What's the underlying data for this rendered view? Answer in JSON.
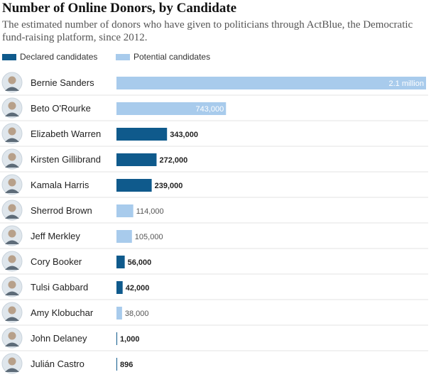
{
  "chart_data": {
    "type": "bar",
    "orientation": "horizontal",
    "title": "Number of Online Donors, by Candidate",
    "subtitle": "The estimated number of donors who have given to politicians through ActBlue, the Democratic fund-raising platform, since 2012.",
    "legend": [
      {
        "name": "Declared candidates",
        "color": "#0f5a8c"
      },
      {
        "name": "Potential candidates",
        "color": "#a8cbec"
      }
    ],
    "categories": [
      "Bernie Sanders",
      "Beto O'Rourke",
      "Elizabeth Warren",
      "Kirsten Gillibrand",
      "Kamala Harris",
      "Sherrod Brown",
      "Jeff Merkley",
      "Cory Booker",
      "Tulsi Gabbard",
      "Amy Klobuchar",
      "John Delaney",
      "Julián Castro"
    ],
    "values": [
      2100000,
      743000,
      343000,
      272000,
      239000,
      114000,
      105000,
      56000,
      42000,
      38000,
      1000,
      896
    ],
    "labels": [
      "2.1 million",
      "743,000",
      "343,000",
      "272,000",
      "239,000",
      "114,000",
      "105,000",
      "56,000",
      "42,000",
      "38,000",
      "1,000",
      "896"
    ],
    "status": [
      "potential",
      "potential",
      "declared",
      "declared",
      "declared",
      "potential",
      "potential",
      "declared",
      "declared",
      "potential",
      "declared",
      "declared"
    ],
    "xlim": [
      0,
      2100000
    ],
    "xlabel": "",
    "ylabel": "",
    "grid": false
  }
}
